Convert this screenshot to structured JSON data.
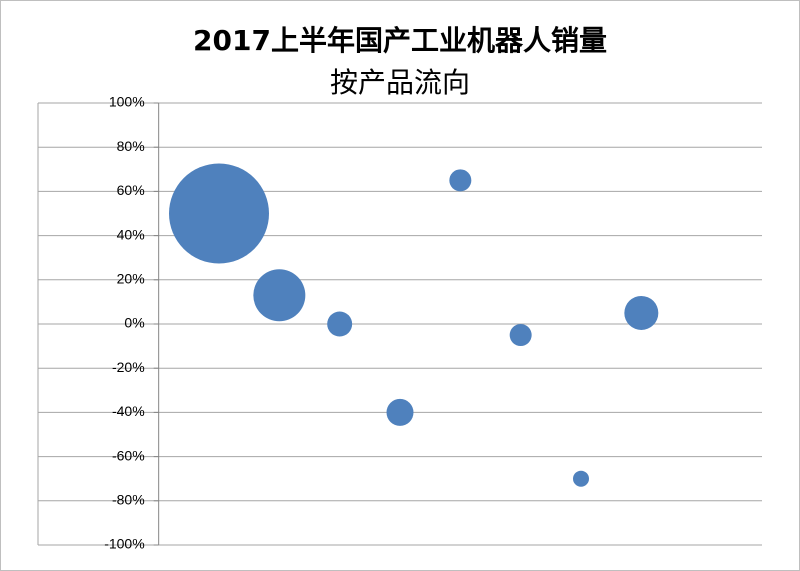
{
  "chart_data": {
    "type": "bubble",
    "title": "2017上半年国产工业机器人销量",
    "subtitle": "按产品流向",
    "series": [
      {
        "color": "#4f81bd",
        "x": [
          1,
          2,
          3,
          4,
          5,
          6,
          7,
          8
        ],
        "values": [
          50,
          13,
          0,
          -40,
          65,
          -5,
          -70,
          5
        ],
        "sizes": [
          2500,
          676,
          156,
          182,
          121,
          121,
          64,
          289
        ]
      }
    ],
    "xlim": [
      -2,
      10
    ],
    "ylim": [
      -100,
      100
    ],
    "yticks": [
      {
        "value": 100,
        "label": "100%"
      },
      {
        "value": 80,
        "label": "80%"
      },
      {
        "value": 60,
        "label": "60%"
      },
      {
        "value": 40,
        "label": "40%"
      },
      {
        "value": 20,
        "label": "20%"
      },
      {
        "value": 0,
        "label": "0%"
      },
      {
        "value": -20,
        "label": "-20%"
      },
      {
        "value": -40,
        "label": "-40%"
      },
      {
        "value": -60,
        "label": "-60%"
      },
      {
        "value": -80,
        "label": "-80%"
      },
      {
        "value": -100,
        "label": "-100%"
      }
    ],
    "grid": true
  }
}
